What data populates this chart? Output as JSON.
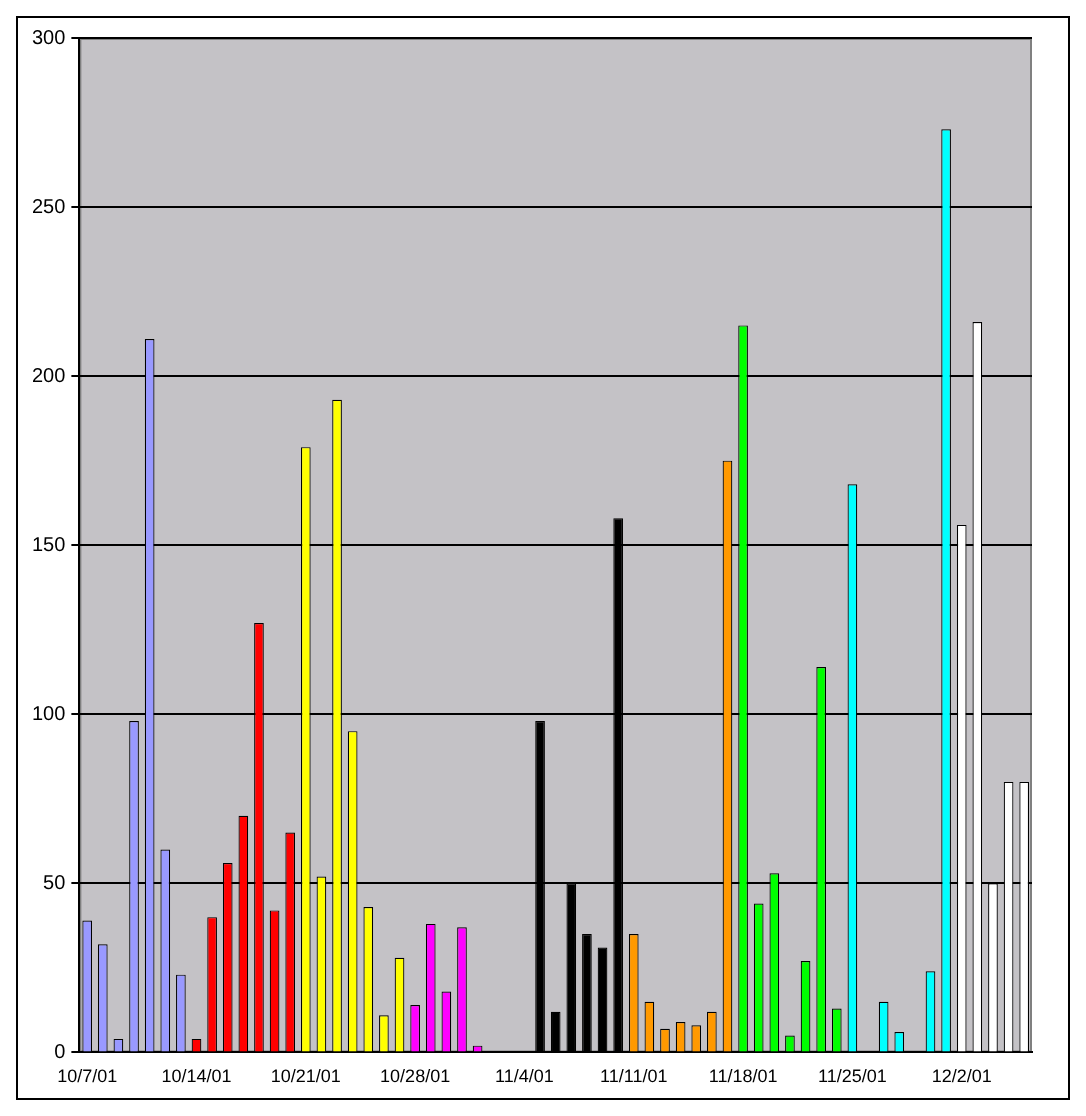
{
  "chart_data": {
    "type": "bar",
    "categories": [
      "10/7/01",
      null,
      null,
      null,
      null,
      null,
      null,
      "10/14/01",
      null,
      null,
      null,
      null,
      null,
      null,
      "10/21/01",
      null,
      null,
      null,
      null,
      null,
      null,
      "10/28/01",
      null,
      null,
      null,
      null,
      null,
      null,
      "11/4/01",
      null,
      null,
      null,
      null,
      null,
      null,
      "11/11/01",
      null,
      null,
      null,
      null,
      null,
      null,
      "11/18/01",
      null,
      null,
      null,
      null,
      null,
      null,
      "11/25/01",
      null,
      null,
      null,
      null,
      null,
      null,
      "12/2/01",
      null,
      null,
      null,
      null
    ],
    "values": [
      39,
      32,
      4,
      98,
      211,
      60,
      23,
      4,
      40,
      56,
      70,
      127,
      42,
      65,
      179,
      52,
      193,
      95,
      43,
      11,
      28,
      14,
      38,
      18,
      37,
      2,
      null,
      null,
      null,
      98,
      12,
      50,
      35,
      31,
      158,
      35,
      15,
      7,
      9,
      8,
      12,
      175,
      215,
      44,
      53,
      5,
      27,
      114,
      13,
      168,
      null,
      15,
      6,
      null,
      24,
      273,
      156,
      216,
      50,
      80,
      80
    ],
    "colors": [
      "#9999ff",
      "#9999ff",
      "#9999ff",
      "#9999ff",
      "#9999ff",
      "#9999ff",
      "#9999ff",
      "#ff0000",
      "#ff0000",
      "#ff0000",
      "#ff0000",
      "#ff0000",
      "#ff0000",
      "#ff0000",
      "#ffff00",
      "#ffff00",
      "#ffff00",
      "#ffff00",
      "#ffff00",
      "#ffff00",
      "#ffff00",
      "#ff00ff",
      "#ff00ff",
      "#ff00ff",
      "#ff00ff",
      "#ff00ff",
      "#ff00ff",
      "#ff00ff",
      "#000000",
      "#000000",
      "#000000",
      "#000000",
      "#000000",
      "#000000",
      "#000000",
      "#ff9900",
      "#ff9900",
      "#ff9900",
      "#ff9900",
      "#ff9900",
      "#ff9900",
      "#ff9900",
      "#00ff00",
      "#00ff00",
      "#00ff00",
      "#00ff00",
      "#00ff00",
      "#00ff00",
      "#00ff00",
      "#00ffff",
      "#00ffff",
      "#00ffff",
      "#00ffff",
      "#00ffff",
      "#00ffff",
      "#00ffff",
      "#ffffff",
      "#ffffff",
      "#ffffff",
      "#ffffff",
      "#ffffff"
    ],
    "ylim": [
      0,
      300
    ],
    "yticks": [
      0,
      50,
      100,
      150,
      200,
      250,
      300
    ],
    "grid": "y",
    "legend": false
  }
}
